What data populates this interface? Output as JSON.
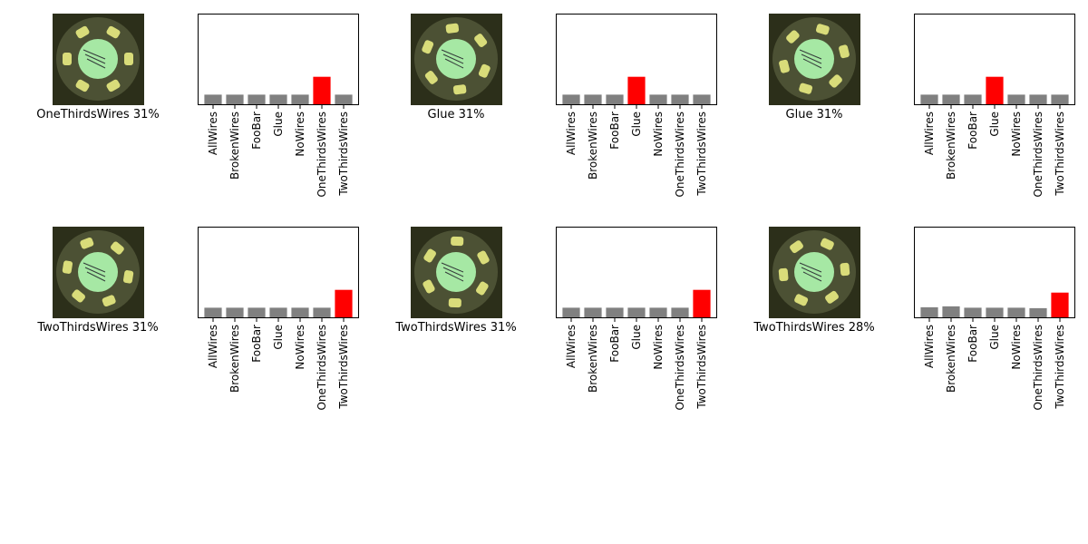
{
  "chart_data": [
    {
      "type": "bar",
      "caption": "OneThirdsWires 31%",
      "categories": [
        "AllWires",
        "BrokenWires",
        "FooBar",
        "Glue",
        "NoWires",
        "OneThirdsWires",
        "TwoThirdsWires"
      ],
      "values": [
        0.115,
        0.115,
        0.115,
        0.115,
        0.115,
        0.31,
        0.115
      ],
      "highlight_index": 5,
      "ylim": [
        0,
        1
      ]
    },
    {
      "type": "bar",
      "caption": "Glue 31%",
      "categories": [
        "AllWires",
        "BrokenWires",
        "FooBar",
        "Glue",
        "NoWires",
        "OneThirdsWires",
        "TwoThirdsWires"
      ],
      "values": [
        0.115,
        0.115,
        0.115,
        0.31,
        0.115,
        0.115,
        0.115
      ],
      "highlight_index": 3,
      "ylim": [
        0,
        1
      ]
    },
    {
      "type": "bar",
      "caption": "Glue 31%",
      "categories": [
        "AllWires",
        "BrokenWires",
        "FooBar",
        "Glue",
        "NoWires",
        "OneThirdsWires",
        "TwoThirdsWires"
      ],
      "values": [
        0.115,
        0.115,
        0.115,
        0.31,
        0.115,
        0.115,
        0.115
      ],
      "highlight_index": 3,
      "ylim": [
        0,
        1
      ]
    },
    {
      "type": "bar",
      "caption": "TwoThirdsWires 31%",
      "categories": [
        "AllWires",
        "BrokenWires",
        "FooBar",
        "Glue",
        "NoWires",
        "OneThirdsWires",
        "TwoThirdsWires"
      ],
      "values": [
        0.115,
        0.115,
        0.115,
        0.115,
        0.115,
        0.115,
        0.31
      ],
      "highlight_index": 6,
      "ylim": [
        0,
        1
      ]
    },
    {
      "type": "bar",
      "caption": "TwoThirdsWires 31%",
      "categories": [
        "AllWires",
        "BrokenWires",
        "FooBar",
        "Glue",
        "NoWires",
        "OneThirdsWires",
        "TwoThirdsWires"
      ],
      "values": [
        0.115,
        0.115,
        0.115,
        0.115,
        0.115,
        0.115,
        0.31
      ],
      "highlight_index": 6,
      "ylim": [
        0,
        1
      ]
    },
    {
      "type": "bar",
      "caption": "TwoThirdsWires 28%",
      "categories": [
        "AllWires",
        "BrokenWires",
        "FooBar",
        "Glue",
        "NoWires",
        "OneThirdsWires",
        "TwoThirdsWires"
      ],
      "values": [
        0.12,
        0.13,
        0.115,
        0.115,
        0.115,
        0.11,
        0.28
      ],
      "highlight_index": 6,
      "ylim": [
        0,
        1
      ]
    }
  ],
  "colors": {
    "bar": "#808080",
    "highlight": "#ff0000",
    "axes": "#000000",
    "thumb_bg": "#2c2f1a",
    "dish": "#4c5134",
    "disk": "#a6e8a4",
    "pads": "#d9dc7a"
  }
}
